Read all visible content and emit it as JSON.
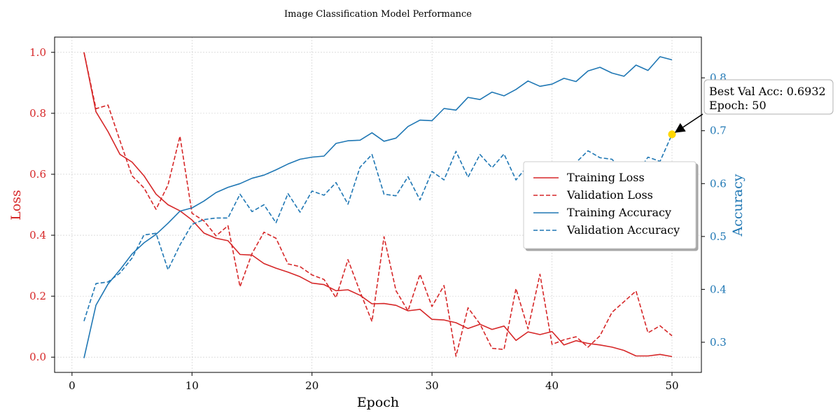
{
  "chart_data": {
    "type": "line",
    "title": "Image Classification Model Performance",
    "xlabel": "Epoch",
    "ylabel_left": "Loss",
    "ylabel_right": "Accuracy",
    "xlim": [
      -1.45,
      52.45
    ],
    "ylim_left": [
      -0.05,
      1.05
    ],
    "ylim_right": [
      0.243,
      0.877
    ],
    "xticks": [
      0,
      10,
      20,
      30,
      40,
      50
    ],
    "yticks_left": [
      0.0,
      0.2,
      0.4,
      0.6,
      0.8,
      1.0
    ],
    "yticks_right": [
      0.3,
      0.4,
      0.5,
      0.6,
      0.7,
      0.8
    ],
    "grid": true,
    "legend_position": "center-right",
    "colors": {
      "loss": "#d62728",
      "accuracy": "#1f77b4",
      "highlight": "#ffd700",
      "axis": "#000000",
      "grid": "#c8c8c8"
    },
    "x": [
      1,
      2,
      3,
      4,
      5,
      6,
      7,
      8,
      9,
      10,
      11,
      12,
      13,
      14,
      15,
      16,
      17,
      18,
      19,
      20,
      21,
      22,
      23,
      24,
      25,
      26,
      27,
      28,
      29,
      30,
      31,
      32,
      33,
      34,
      35,
      36,
      37,
      38,
      39,
      40,
      41,
      42,
      43,
      44,
      45,
      46,
      47,
      48,
      49,
      50
    ],
    "series": [
      {
        "name": "Training Loss",
        "axis": "left",
        "style": "solid",
        "values": [
          1.0,
          0.805,
          0.74,
          0.665,
          0.64,
          0.595,
          0.535,
          0.5,
          0.48,
          0.45,
          0.407,
          0.39,
          0.382,
          0.337,
          0.335,
          0.307,
          0.292,
          0.279,
          0.264,
          0.243,
          0.238,
          0.218,
          0.221,
          0.203,
          0.175,
          0.176,
          0.17,
          0.152,
          0.157,
          0.124,
          0.122,
          0.113,
          0.094,
          0.108,
          0.091,
          0.102,
          0.055,
          0.083,
          0.074,
          0.084,
          0.04,
          0.054,
          0.045,
          0.04,
          0.033,
          0.022,
          0.004,
          0.004,
          0.009,
          0.002
        ]
      },
      {
        "name": "Validation Loss",
        "axis": "left",
        "style": "dashed",
        "values": [
          1.0,
          0.815,
          0.827,
          0.71,
          0.595,
          0.555,
          0.485,
          0.565,
          0.725,
          0.472,
          0.447,
          0.398,
          0.431,
          0.231,
          0.34,
          0.41,
          0.39,
          0.306,
          0.297,
          0.27,
          0.255,
          0.195,
          0.32,
          0.215,
          0.117,
          0.395,
          0.218,
          0.152,
          0.272,
          0.166,
          0.235,
          0.003,
          0.162,
          0.109,
          0.029,
          0.025,
          0.225,
          0.093,
          0.272,
          0.042,
          0.057,
          0.067,
          0.033,
          0.07,
          0.147,
          0.182,
          0.217,
          0.08,
          0.103,
          0.07
        ]
      },
      {
        "name": "Training Accuracy",
        "axis": "right",
        "style": "solid",
        "values": [
          0.27,
          0.37,
          0.41,
          0.437,
          0.467,
          0.488,
          0.504,
          0.525,
          0.548,
          0.554,
          0.567,
          0.583,
          0.593,
          0.6,
          0.61,
          0.616,
          0.626,
          0.637,
          0.646,
          0.65,
          0.652,
          0.676,
          0.681,
          0.682,
          0.696,
          0.68,
          0.686,
          0.708,
          0.72,
          0.719,
          0.742,
          0.739,
          0.763,
          0.759,
          0.773,
          0.766,
          0.778,
          0.794,
          0.784,
          0.788,
          0.799,
          0.793,
          0.813,
          0.82,
          0.809,
          0.803,
          0.824,
          0.814,
          0.84,
          0.834
        ]
      },
      {
        "name": "Validation Accuracy",
        "axis": "right",
        "style": "dashed",
        "values": [
          0.34,
          0.411,
          0.414,
          0.431,
          0.459,
          0.503,
          0.506,
          0.437,
          0.484,
          0.523,
          0.532,
          0.535,
          0.535,
          0.58,
          0.547,
          0.56,
          0.526,
          0.581,
          0.546,
          0.586,
          0.578,
          0.602,
          0.561,
          0.631,
          0.655,
          0.58,
          0.577,
          0.613,
          0.569,
          0.623,
          0.607,
          0.661,
          0.612,
          0.655,
          0.63,
          0.656,
          0.607,
          0.634,
          0.565,
          0.637,
          0.637,
          0.64,
          0.662,
          0.649,
          0.646,
          0.621,
          0.618,
          0.65,
          0.642,
          0.693
        ]
      }
    ],
    "annotation": {
      "line1": "Best Val Acc: 0.6932",
      "line2": "Epoch: 50",
      "x": 50,
      "y": 0.6932
    },
    "legend": [
      "Training Loss",
      "Validation Loss",
      "Training Accuracy",
      "Validation Accuracy"
    ]
  }
}
